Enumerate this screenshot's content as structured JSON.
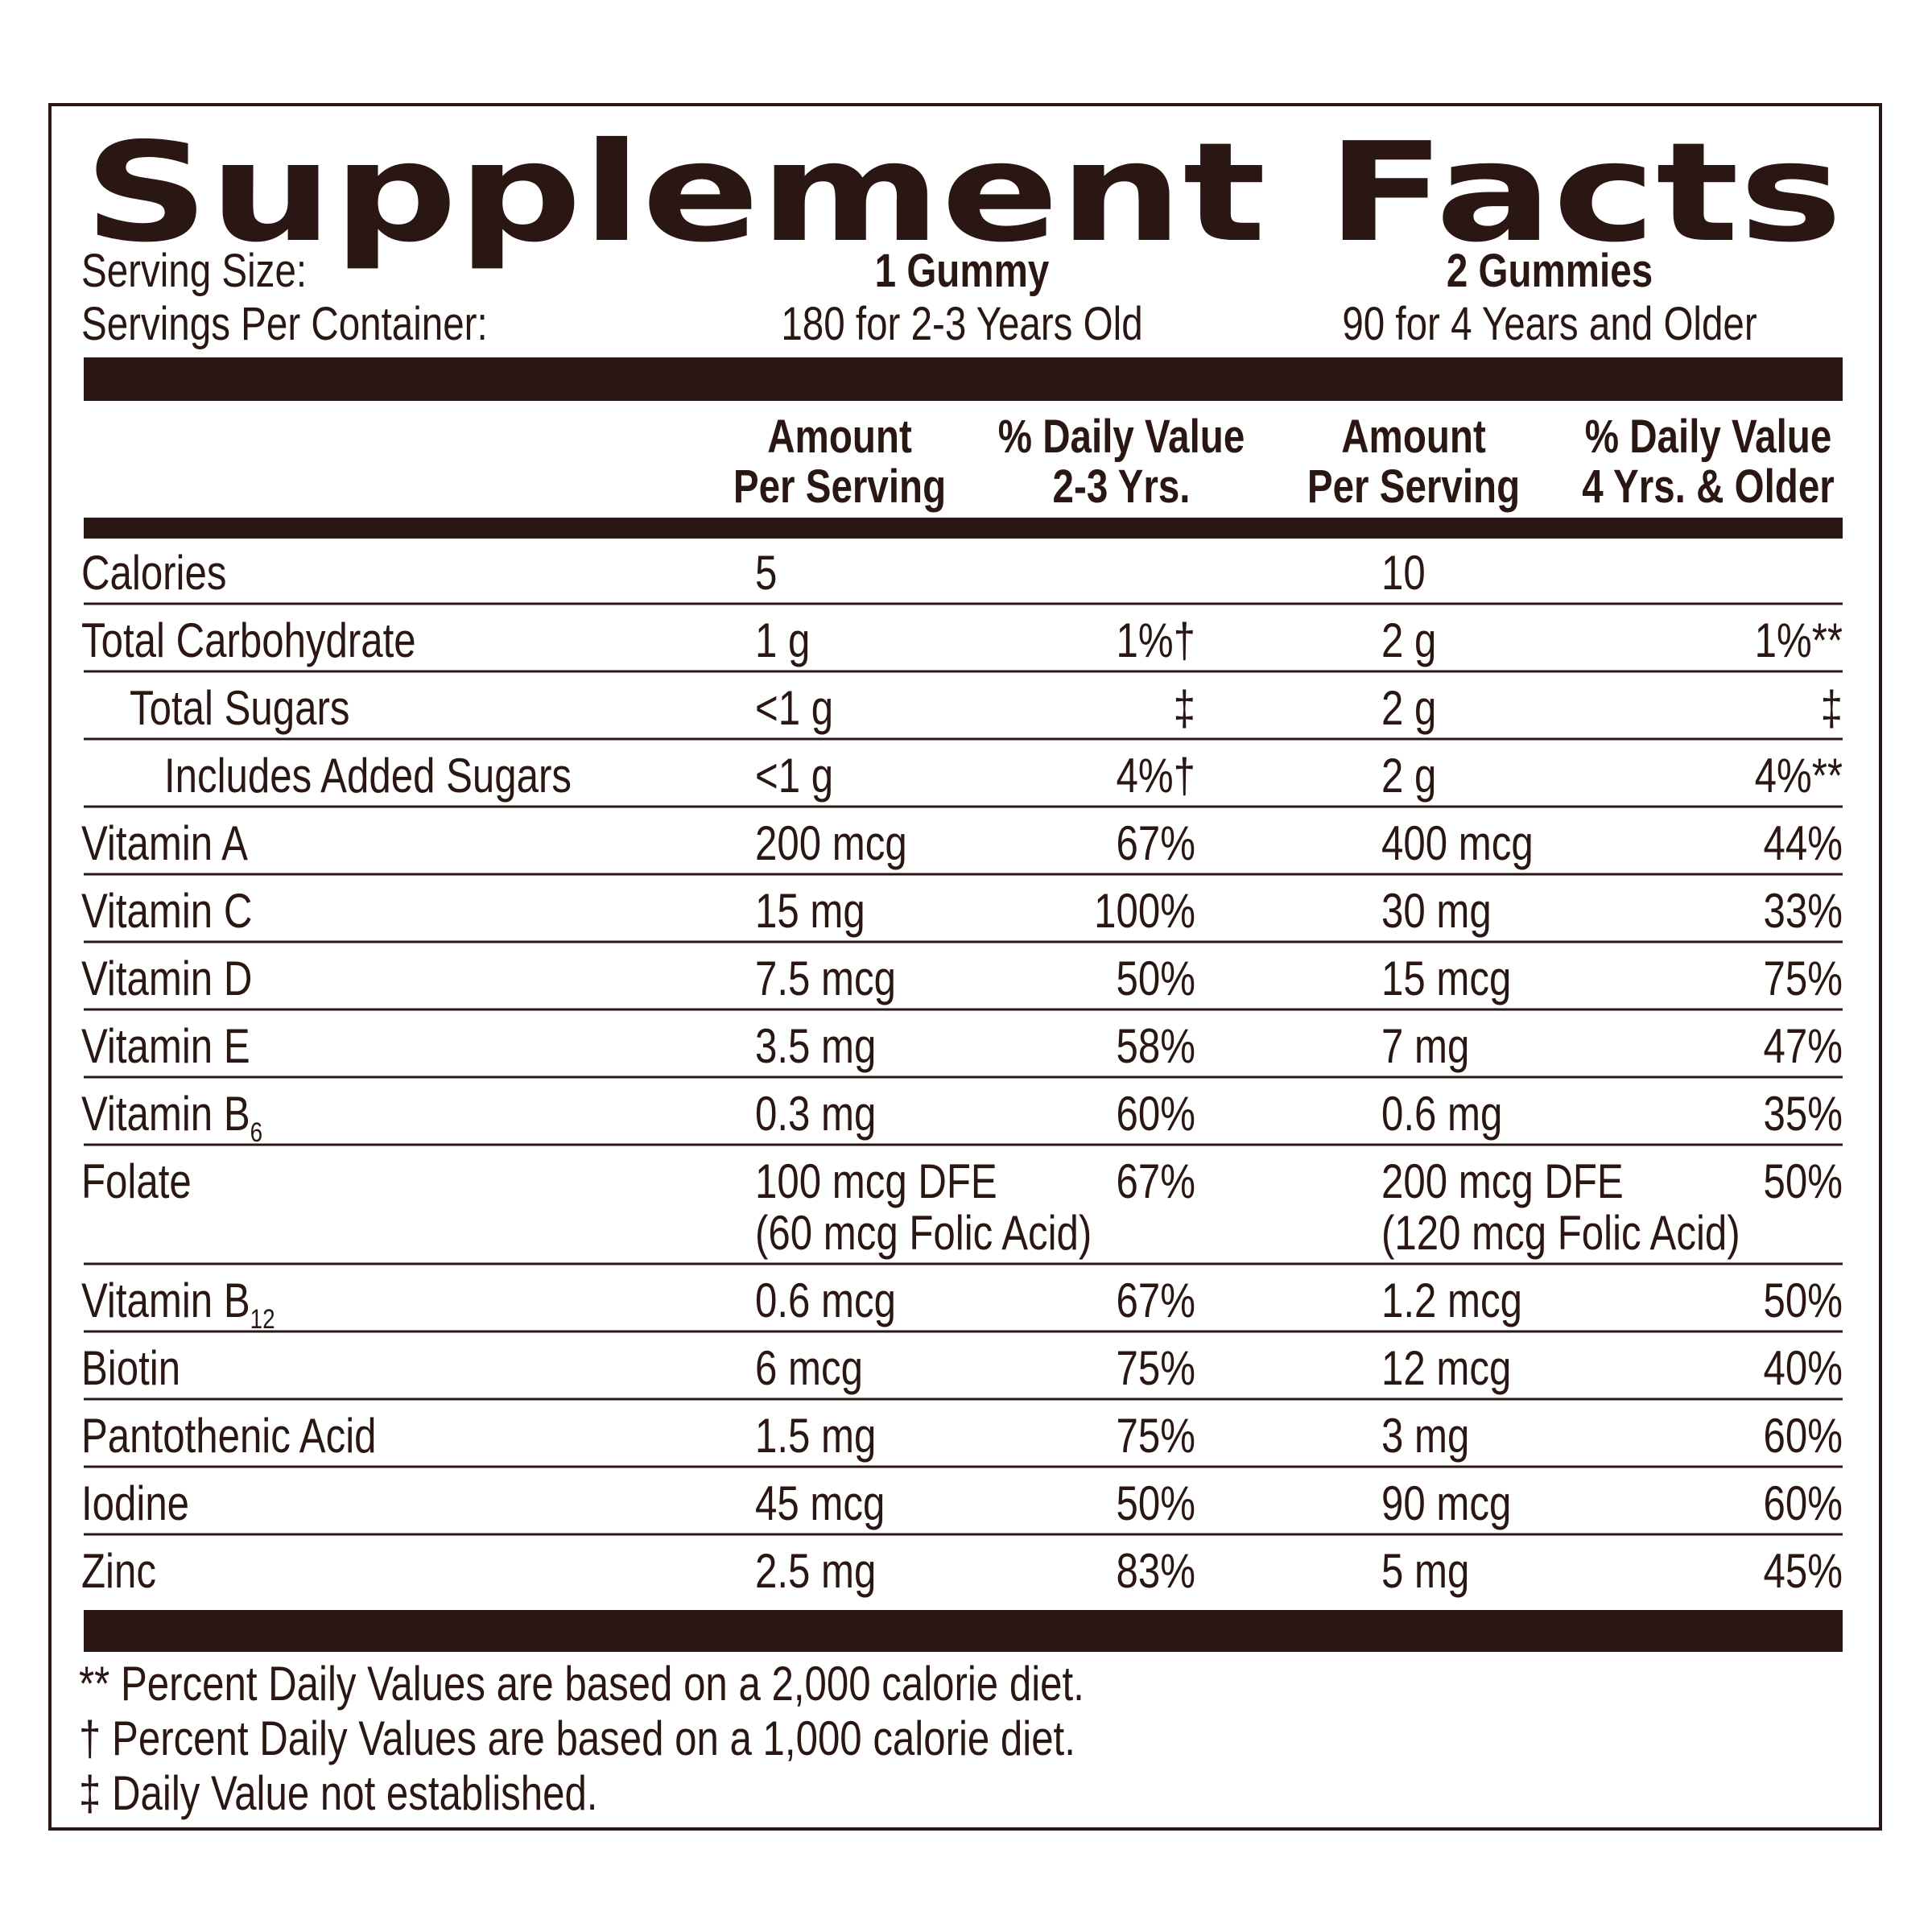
{
  "title": "Supplement Facts",
  "serving": {
    "size_label": "Serving Size:",
    "per_container_label": "Servings Per Container:",
    "columns": [
      {
        "size": "1 Gummy",
        "servings": "180 for 2-3 Years Old"
      },
      {
        "size": "2 Gummies",
        "servings": "90 for 4 Years and Older"
      }
    ]
  },
  "headers": [
    [
      "Amount",
      "Per Serving"
    ],
    [
      "% Daily Value",
      "2-3 Yrs."
    ],
    [
      "Amount",
      "Per Serving"
    ],
    [
      "% Daily Value",
      "4 Yrs. & Older"
    ]
  ],
  "rows": [
    {
      "name": "Calories",
      "indent": 0,
      "amount_1": "5",
      "amount_2": "10"
    },
    {
      "name": "Total Carbohydrate",
      "indent": 0,
      "amount_1": "1 g",
      "dv_1": "1%†",
      "amount_2": "2 g",
      "dv_2": "1%**"
    },
    {
      "name": "Total Sugars",
      "indent": 1,
      "amount_1": "<1 g",
      "dv_1": "‡",
      "amount_2": "2 g",
      "dv_2": "‡"
    },
    {
      "name": "Includes Added Sugars",
      "indent": 2,
      "amount_1": "<1 g",
      "dv_1": "4%†",
      "amount_2": "2 g",
      "dv_2": "4%**"
    },
    {
      "name": "Vitamin A",
      "indent": 0,
      "amount_1": "200 mcg",
      "dv_1": "67%",
      "amount_2": "400 mcg",
      "dv_2": "44%"
    },
    {
      "name": "Vitamin C",
      "indent": 0,
      "amount_1": "15 mg",
      "dv_1": "100%",
      "amount_2": "30 mg",
      "dv_2": "33%"
    },
    {
      "name": "Vitamin D",
      "indent": 0,
      "amount_1": "7.5 mcg",
      "dv_1": "50%",
      "amount_2": "15 mcg",
      "dv_2": "75%"
    },
    {
      "name": "Vitamin E",
      "indent": 0,
      "amount_1": "3.5 mg",
      "dv_1": "58%",
      "amount_2": "7 mg",
      "dv_2": "47%"
    },
    {
      "name": "Vitamin B",
      "name_sub": "6",
      "indent": 0,
      "amount_1": "0.3 mg",
      "dv_1": "60%",
      "amount_2": "0.6 mg",
      "dv_2": "35%"
    },
    {
      "name": "Folate",
      "indent": 0,
      "amount_1": "100 mcg DFE",
      "amount_1_note": "(60 mcg Folic Acid)",
      "dv_1": "67%",
      "amount_2": "200 mcg DFE",
      "amount_2_note": "(120 mcg Folic Acid)",
      "dv_2": "50%"
    },
    {
      "name": "Vitamin B",
      "name_sub": "12",
      "indent": 0,
      "amount_1": "0.6 mcg",
      "dv_1": "67%",
      "amount_2": "1.2 mcg",
      "dv_2": "50%"
    },
    {
      "name": "Biotin",
      "indent": 0,
      "amount_1": "6 mcg",
      "dv_1": "75%",
      "amount_2": "12 mcg",
      "dv_2": "40%"
    },
    {
      "name": "Pantothenic Acid",
      "indent": 0,
      "amount_1": "1.5 mg",
      "dv_1": "75%",
      "amount_2": "3 mg",
      "dv_2": "60%"
    },
    {
      "name": "Iodine",
      "indent": 0,
      "amount_1": "45 mcg",
      "dv_1": "50%",
      "amount_2": "90 mcg",
      "dv_2": "60%"
    },
    {
      "name": "Zinc",
      "indent": 0,
      "amount_1": "2.5 mg",
      "dv_1": "83%",
      "amount_2": "5 mg",
      "dv_2": "45%"
    }
  ],
  "footnotes": [
    "** Percent Daily Values are based on a 2,000 calorie diet.",
    "† Percent Daily Values are based on a 1,000 calorie diet.",
    "‡ Daily Value not established."
  ]
}
